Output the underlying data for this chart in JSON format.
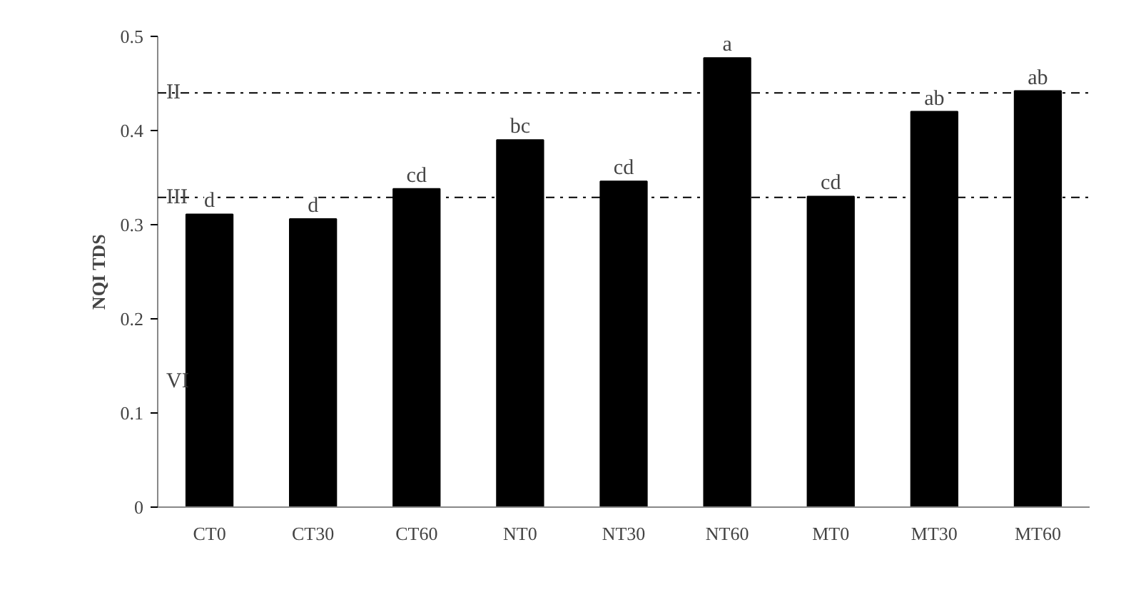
{
  "chart_data": {
    "type": "bar",
    "ylabel": "NQI TDS",
    "categories": [
      "CT0",
      "CT30",
      "CT60",
      "NT0",
      "NT30",
      "NT60",
      "MT0",
      "MT30",
      "MT60"
    ],
    "values": [
      0.311,
      0.306,
      0.338,
      0.39,
      0.346,
      0.477,
      0.33,
      0.42,
      0.442
    ],
    "color": "#000000",
    "ylim": [
      0,
      0.5
    ],
    "yticks": [
      0,
      0.1,
      0.2,
      0.3,
      0.4,
      0.5
    ],
    "grid": false,
    "ref_lines": [
      {
        "axis": "y",
        "value": 0.44,
        "label": "II",
        "line_style": "dashdot",
        "color": "#000000"
      },
      {
        "axis": "y",
        "value": 0.329,
        "label": "III",
        "line_style": "dashdot",
        "color": "#000000"
      }
    ],
    "annotations": [
      {
        "text": "d",
        "x": "CT0",
        "y": 0.311
      },
      {
        "text": "d",
        "x": "CT30",
        "y": 0.306
      },
      {
        "text": "cd",
        "x": "CT60",
        "y": 0.338
      },
      {
        "text": "bc",
        "x": "NT0",
        "y": 0.39
      },
      {
        "text": "cd",
        "x": "NT30",
        "y": 0.346
      },
      {
        "text": "a",
        "x": "NT60",
        "y": 0.477
      },
      {
        "text": "cd",
        "x": "MT0",
        "y": 0.33
      },
      {
        "text": "ab",
        "x": "MT30",
        "y": 0.42
      },
      {
        "text": "ab",
        "x": "MT60",
        "y": 0.442
      },
      "VI"
    ]
  }
}
